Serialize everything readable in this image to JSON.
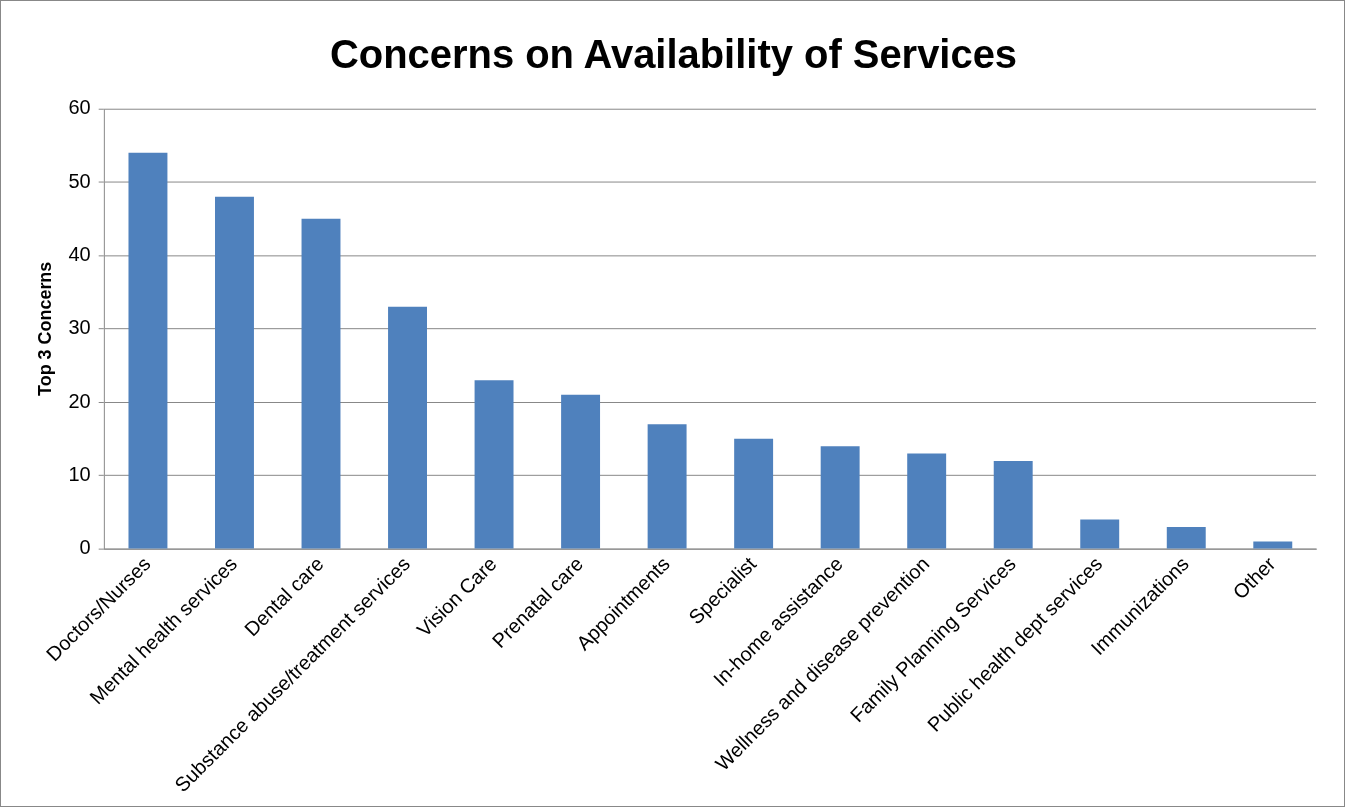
{
  "chart_data": {
    "type": "bar",
    "title": "Concerns on Availability of Services",
    "ylabel": "Top 3 Concerns",
    "categories": [
      "Doctors/Nurses",
      "Mental health services",
      "Dental care",
      "Substance abuse/treatment services",
      "Vision Care",
      "Prenatal care",
      "Appointments",
      "Specialist",
      "In-home assistance",
      "Wellness and disease prevention",
      "Family Planning Services",
      "Public health dept services",
      "Immunizations",
      "Other"
    ],
    "values": [
      54,
      48,
      45,
      33,
      23,
      21,
      17,
      15,
      14,
      13,
      12,
      4,
      3,
      1
    ],
    "color": "#4f81bd",
    "ylim": [
      0,
      60
    ],
    "yticks": [
      0,
      10,
      20,
      30,
      40,
      50,
      60
    ],
    "grid": "y",
    "legend": false
  }
}
